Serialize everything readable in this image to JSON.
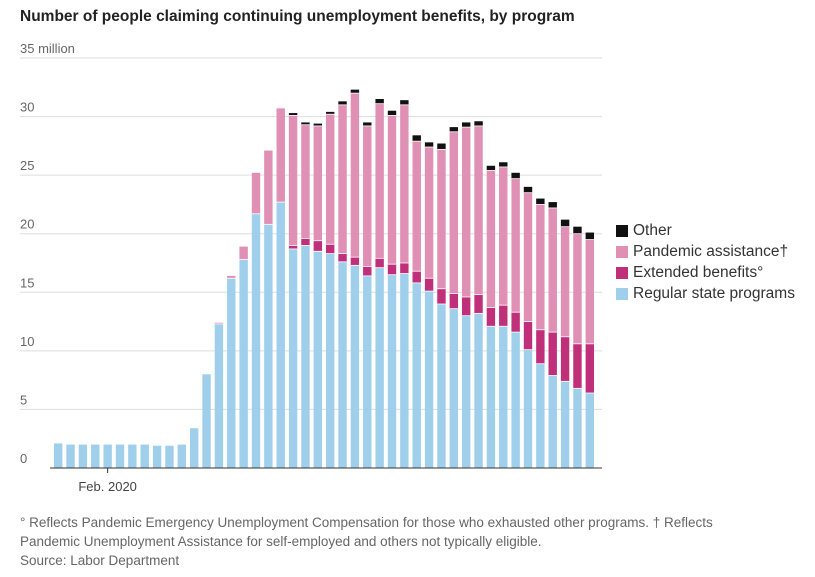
{
  "title": "Number of people claiming continuing unemployment benefits, by program",
  "chart_data": {
    "type": "bar",
    "stacked": true,
    "ylim": [
      0,
      35
    ],
    "y_tick_labels": [
      "0",
      "5",
      "10",
      "15",
      "20",
      "25",
      "30",
      "35 million"
    ],
    "y_ticks": [
      0,
      5,
      10,
      15,
      20,
      25,
      30,
      35
    ],
    "x_tick_label": "Feb. 2020",
    "x_tick_index": 4,
    "grid": true,
    "legend_position": "right",
    "series": [
      {
        "name": "Regular state programs",
        "color": "#9fcfeb",
        "values": [
          2.1,
          2.0,
          2.0,
          2.0,
          2.0,
          2.0,
          2.0,
          2.0,
          1.9,
          1.9,
          2.0,
          3.4,
          8.0,
          12.3,
          16.2,
          17.8,
          21.7,
          20.8,
          22.7,
          18.7,
          19.0,
          18.5,
          18.3,
          17.6,
          17.3,
          16.4,
          17.1,
          16.5,
          16.6,
          15.8,
          15.1,
          14.0,
          13.6,
          13.0,
          13.2,
          12.1,
          12.1,
          11.6,
          10.1,
          8.9,
          7.9,
          7.4,
          6.8,
          6.4
        ]
      },
      {
        "name": "Extended benefits",
        "color": "#c0307a",
        "values": [
          0,
          0,
          0,
          0,
          0,
          0,
          0,
          0,
          0,
          0,
          0,
          0,
          0,
          0,
          0,
          0,
          0,
          0,
          0,
          0.3,
          0.6,
          0.9,
          0.8,
          0.7,
          0.7,
          0.8,
          0.8,
          0.9,
          0.9,
          1.0,
          1.1,
          1.3,
          1.3,
          1.6,
          1.6,
          1.6,
          1.8,
          1.7,
          2.4,
          2.9,
          3.7,
          3.8,
          3.8,
          4.2
        ]
      },
      {
        "name": "Pandemic assistance†",
        "color": "#e090b4",
        "values": [
          0,
          0,
          0,
          0,
          0,
          0,
          0,
          0,
          0,
          0,
          0,
          0,
          0,
          0.1,
          0.2,
          1.1,
          3.5,
          6.3,
          8.0,
          11.1,
          9.7,
          9.8,
          11.1,
          12.7,
          14.0,
          12.0,
          13.2,
          12.7,
          13.5,
          11.1,
          11.2,
          11.9,
          13.8,
          14.5,
          14.4,
          11.7,
          11.8,
          11.4,
          11.0,
          10.7,
          10.6,
          9.4,
          9.4,
          8.9
        ]
      },
      {
        "name": "Other",
        "color": "#111111",
        "values": [
          0,
          0,
          0,
          0,
          0,
          0,
          0,
          0,
          0,
          0,
          0,
          0,
          0,
          0,
          0,
          0,
          0,
          0,
          0,
          0.2,
          0.2,
          0.2,
          0.2,
          0.3,
          0.3,
          0.3,
          0.4,
          0.4,
          0.4,
          0.5,
          0.4,
          0.5,
          0.4,
          0.4,
          0.4,
          0.4,
          0.4,
          0.5,
          0.5,
          0.5,
          0.5,
          0.6,
          0.6,
          0.6
        ]
      }
    ]
  },
  "legend_order": [
    "Other",
    "Pandemic assistance†",
    "Extended benefits°",
    "Regular state programs"
  ],
  "notes": {
    "line1": "° Reflects Pandemic Emergency Unemployment Compensation for those who exhausted other programs. † Reflects",
    "line2": "Pandemic Unemployment Assistance for self-employed and others not typically eligible.",
    "source": "Source: Labor Department"
  },
  "legend": {
    "other": "Other",
    "pandemic": "Pandemic assistance†",
    "extended": "Extended benefits°",
    "regular": "Regular state programs",
    "other_color": "#111111",
    "pandemic_color": "#e090b4",
    "extended_color": "#c0307a",
    "regular_color": "#9fcfeb"
  }
}
